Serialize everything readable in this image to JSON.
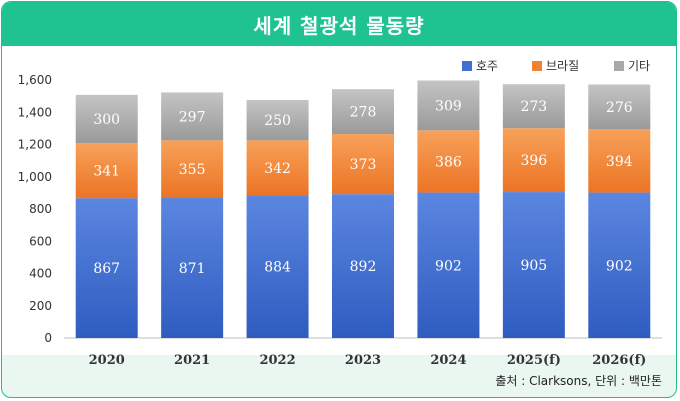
{
  "header": {
    "title": "세계 철광석 물동량"
  },
  "footer": {
    "source": "출처 : Clarksons, 단위 : 백만톤"
  },
  "colors": {
    "title_bg": "#1fc291",
    "aus": "#3f6fd1",
    "brazil": "#f0832f",
    "other": "#a8a8a8",
    "label_dark": "#c0440f"
  },
  "chart_data": {
    "type": "bar",
    "stacked": true,
    "title": "세계 철광석 물동량",
    "categories": [
      "2020",
      "2021",
      "2022",
      "2023",
      "2024",
      "2025(f)",
      "2026(f)"
    ],
    "series": [
      {
        "name": "호주",
        "values": [
          867,
          871,
          884,
          892,
          902,
          905,
          902
        ]
      },
      {
        "name": "브라질",
        "values": [
          341,
          355,
          342,
          373,
          386,
          396,
          394
        ]
      },
      {
        "name": "기타",
        "values": [
          300,
          297,
          250,
          278,
          309,
          273,
          276
        ]
      }
    ],
    "ylim": [
      0,
      1600
    ],
    "yticks": [
      "0",
      "200",
      "400",
      "600",
      "800",
      "1,000",
      "1,200",
      "1,400",
      "1,600"
    ],
    "ytick_values": [
      0,
      200,
      400,
      600,
      800,
      1000,
      1200,
      1400,
      1600
    ],
    "legend": "top-right",
    "grid": false
  }
}
